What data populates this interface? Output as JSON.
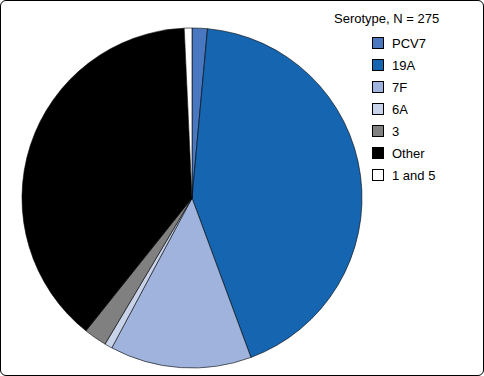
{
  "chart_data": {
    "type": "pie",
    "title": "Serotype, N = 275",
    "categories": [
      "PCV7",
      "19A",
      "7F",
      "6A",
      "3",
      "Other",
      "1 and 5"
    ],
    "values": [
      4,
      118,
      37,
      2,
      6,
      106,
      2
    ],
    "colors": [
      "#4a78c0",
      "#1565b0",
      "#9fb3dc",
      "#c8d3ea",
      "#808080",
      "#000000",
      "#ffffff"
    ],
    "legend": "upper right"
  }
}
